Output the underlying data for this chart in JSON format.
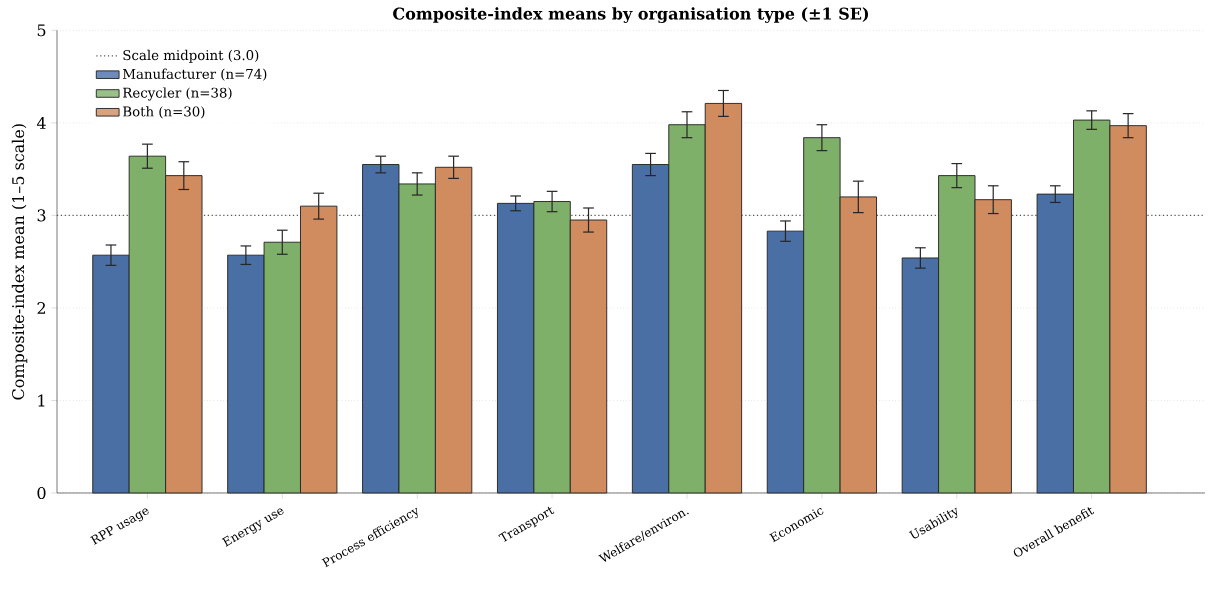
{
  "chart_data": {
    "type": "bar",
    "title": "Composite-index means by organisation type (±1 SE)",
    "ylabel": "Composite-index mean (1–5 scale)",
    "categories": [
      "RPP usage",
      "Energy use",
      "Process efficiency",
      "Transport",
      "Welfare/environ.",
      "Economic",
      "Usability",
      "Overall benefit"
    ],
    "series": [
      {
        "name": "Manufacturer (n=74)",
        "color": "#4a6fa5",
        "values": [
          2.57,
          2.57,
          3.55,
          3.13,
          3.55,
          2.83,
          2.54,
          3.23
        ],
        "errors": [
          0.11,
          0.1,
          0.09,
          0.08,
          0.12,
          0.11,
          0.11,
          0.09
        ]
      },
      {
        "name": "Recycler (n=38)",
        "color": "#7fb069",
        "values": [
          3.64,
          2.71,
          3.34,
          3.15,
          3.98,
          3.84,
          3.43,
          4.03
        ],
        "errors": [
          0.13,
          0.13,
          0.12,
          0.11,
          0.14,
          0.14,
          0.13,
          0.1
        ]
      },
      {
        "name": "Both (n=30)",
        "color": "#d08b5f",
        "values": [
          3.43,
          3.1,
          3.52,
          2.95,
          4.21,
          3.2,
          3.17,
          3.97
        ],
        "errors": [
          0.15,
          0.14,
          0.12,
          0.13,
          0.14,
          0.17,
          0.15,
          0.13
        ]
      }
    ],
    "ylim": [
      0,
      5
    ],
    "yticks": [
      0,
      1,
      2,
      3,
      4,
      5
    ],
    "grid": "y",
    "legend": "top left",
    "ref_lines": [
      {
        "axis": "y",
        "value": 3,
        "label": "Scale midpoint (3.0)",
        "color": "#555555",
        "line_style": "dotted"
      }
    ]
  }
}
